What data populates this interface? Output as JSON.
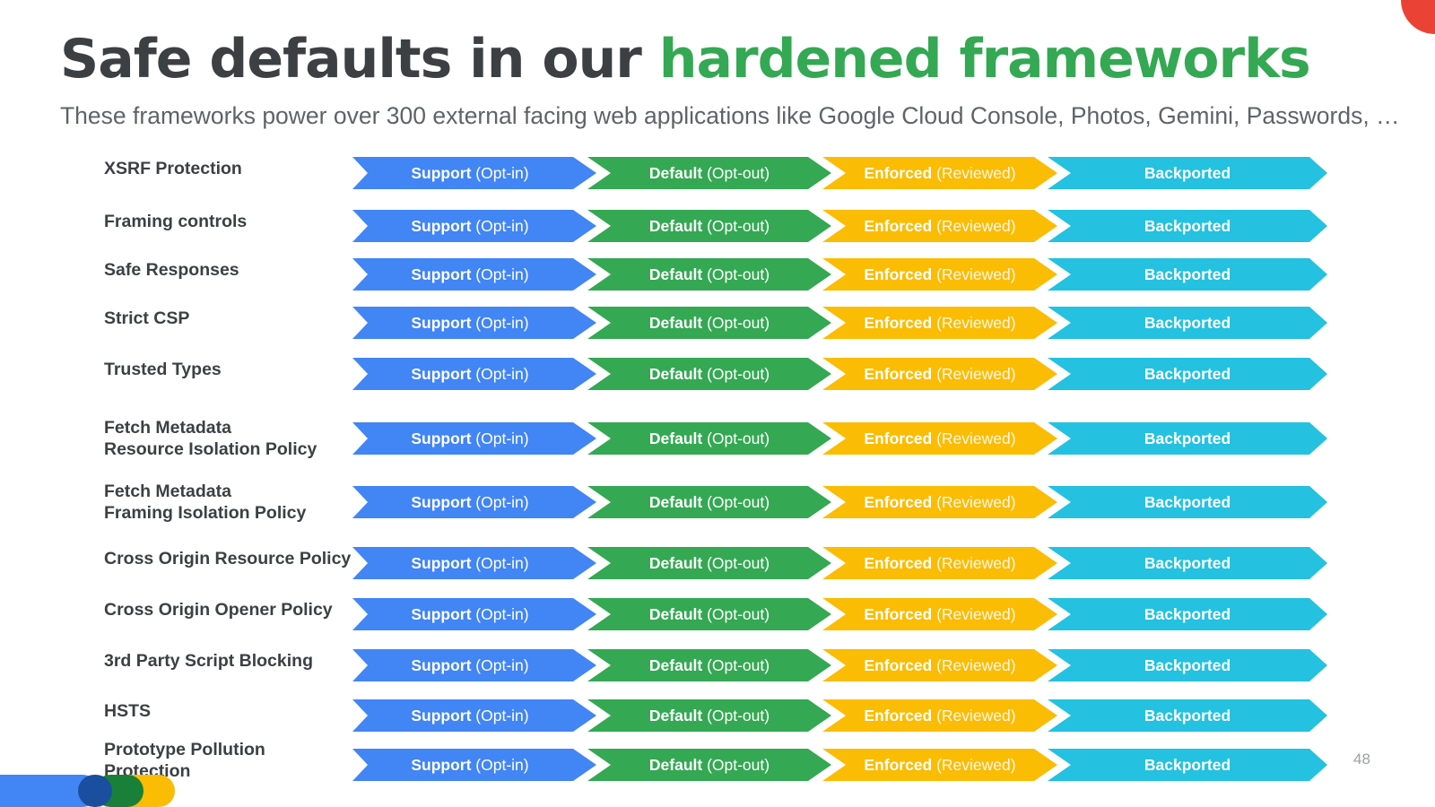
{
  "slide": {
    "title_main": "Safe defaults in our ",
    "title_accent": "hardened frameworks",
    "subtitle": "These frameworks power over 300 external facing web applications like Google Cloud Console, Photos, Gemini, Passwords, …",
    "page_number": "48"
  },
  "stages": {
    "support": {
      "main": "Support",
      "sub": " (Opt-in)"
    },
    "default": {
      "main": "Default",
      "sub": " (Opt-out)"
    },
    "enforced": {
      "main": "Enforced",
      "sub": " (Reviewed)"
    },
    "backported": {
      "main": "Backported"
    }
  },
  "features": [
    "XSRF Protection",
    "Framing controls",
    "Safe Responses",
    "Strict CSP",
    "Trusted Types",
    "Fetch Metadata\nResource Isolation Policy",
    "Fetch Metadata\nFraming Isolation Policy",
    "Cross Origin Resource Policy",
    "Cross Origin Opener Policy",
    "3rd Party Script Blocking",
    "HSTS",
    "Prototype Pollution Protection"
  ],
  "colors": {
    "title_dark": "#3c4043",
    "title_accent": "#34a853",
    "subtitle": "#5f6368",
    "label": "#3c4043",
    "support": "#4285f4",
    "default": "#34a853",
    "enforced": "#fbbc04",
    "backported": "#24c1e0",
    "corner_dot": "#ea4335",
    "brand_blue": "#4285f4",
    "brand_navy": "#1a4fa0",
    "brand_green": "#188038",
    "brand_yellow": "#fbbc04"
  }
}
